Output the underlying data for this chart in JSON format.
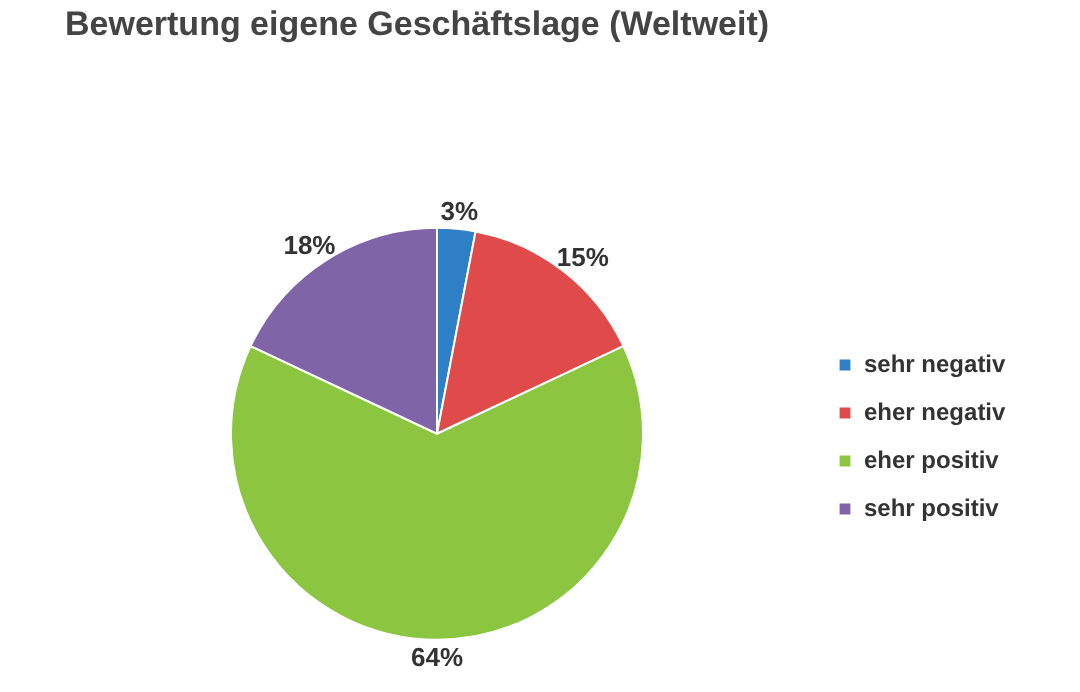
{
  "chart_data": {
    "type": "pie",
    "title": "Bewertung eigene Geschäftslage  (Weltweit)",
    "categories": [
      "sehr negativ",
      "eher negativ",
      "eher positiv",
      "sehr positiv"
    ],
    "values": [
      3,
      15,
      64,
      18
    ],
    "colors": [
      "#2f7fc6",
      "#e04a4a",
      "#8cc540",
      "#8064a8"
    ],
    "value_labels": [
      "3%",
      "15%",
      "64%",
      "18%"
    ],
    "legend": "right"
  }
}
